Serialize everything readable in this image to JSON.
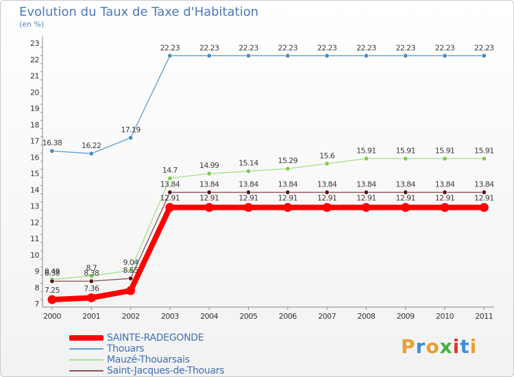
{
  "header": {
    "title": "Evolution du Taux de Taxe d'Habitation",
    "subtitle": "(en %)"
  },
  "logo": {
    "text": "Proxiti",
    "colors": [
      "#e8a030",
      "#3a8fd8",
      "#e8a030",
      "#3fb13f",
      "#e83030",
      "#3a8fd8",
      "#e8a030"
    ]
  },
  "chart_data": {
    "type": "line",
    "title": "Evolution du Taux de Taxe d'Habitation",
    "ylabel": "(en %)",
    "xlabel": "",
    "ylim": [
      7,
      23
    ],
    "yticks": [
      7,
      8,
      9,
      10,
      11,
      12,
      13,
      14,
      15,
      16,
      17,
      18,
      19,
      20,
      21,
      22,
      23
    ],
    "grid": false,
    "legend": "bottom-left",
    "categories": [
      "2000",
      "2001",
      "2002",
      "2003",
      "2004",
      "2005",
      "2006",
      "2007",
      "2008",
      "2009",
      "2010",
      "2011"
    ],
    "series": [
      {
        "name": "SAINTE-RADEGONDE",
        "color": "#ff0000",
        "marker": "#ff0000",
        "bold": true,
        "values": [
          7.25,
          7.36,
          7.8,
          12.91,
          12.91,
          12.91,
          12.91,
          12.91,
          12.91,
          12.91,
          12.91,
          12.91
        ],
        "labels": [
          "7.25",
          "7.36",
          "",
          "12.91",
          "12.91",
          "12.91",
          "12.91",
          "12.91",
          "12.91",
          "12.91",
          "12.91",
          "12.91"
        ]
      },
      {
        "name": "Thouars",
        "color": "#5b9bd5",
        "marker": "#4a8cc8",
        "bold": false,
        "values": [
          16.38,
          16.22,
          17.19,
          22.23,
          22.23,
          22.23,
          22.23,
          22.23,
          22.23,
          22.23,
          22.23,
          22.23
        ],
        "labels": [
          "16.38",
          "16.22",
          "17.19",
          "22.23",
          "22.23",
          "22.23",
          "22.23",
          "22.23",
          "22.23",
          "22.23",
          "22.23",
          "22.23"
        ]
      },
      {
        "name": "Mauzé-Thouarsais",
        "color": "#a6de8a",
        "marker": "#7dcc4a",
        "bold": false,
        "values": [
          8.49,
          8.7,
          9.04,
          14.7,
          14.99,
          15.14,
          15.29,
          15.6,
          15.91,
          15.91,
          15.91,
          15.91
        ],
        "labels": [
          "8.49",
          "8.7",
          "9.04",
          "14.7",
          "14.99",
          "15.14",
          "15.29",
          "15.6",
          "15.91",
          "15.91",
          "15.91",
          "15.91"
        ]
      },
      {
        "name": "Saint-Jacques-de-Thouars",
        "color": "#8a4e50",
        "marker": "#5a1416",
        "bold": false,
        "values": [
          8.38,
          8.38,
          8.55,
          13.84,
          13.84,
          13.84,
          13.84,
          13.84,
          13.84,
          13.84,
          13.84,
          13.84
        ],
        "labels": [
          "8.38",
          "8.38",
          "8.55",
          "13.84",
          "13.84",
          "13.84",
          "13.84",
          "13.84",
          "13.84",
          "13.84",
          "13.84",
          "13.84"
        ]
      }
    ]
  }
}
